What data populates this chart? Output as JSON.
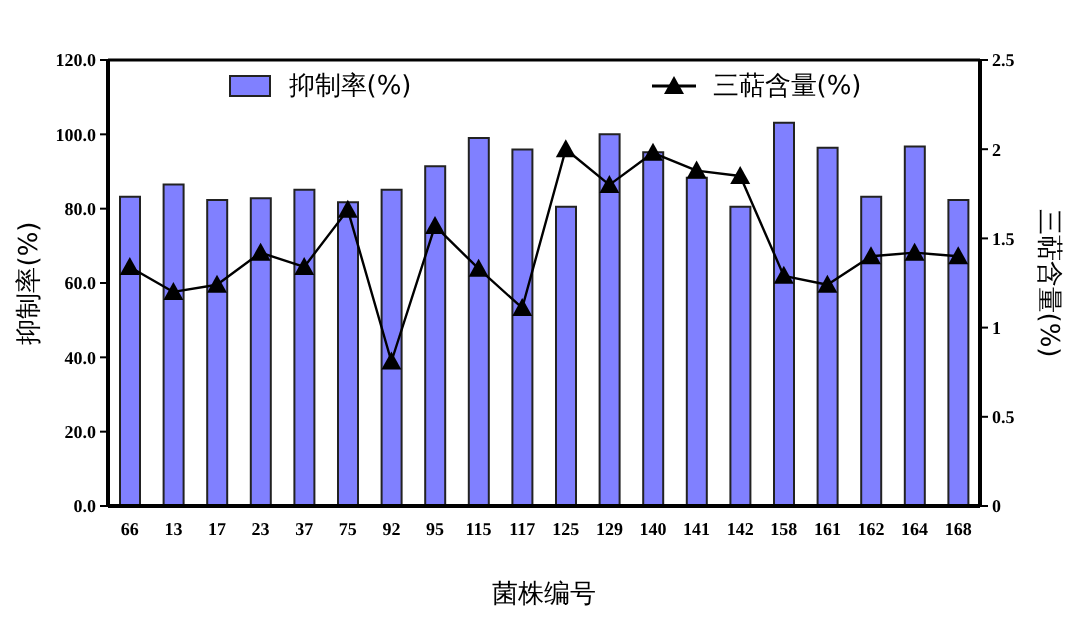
{
  "chart_data": {
    "type": "bar",
    "xlabel": "菌株编号",
    "ylabel": "抑制率(%)",
    "y2label": "三萜含量(%)",
    "categories": [
      "66",
      "13",
      "17",
      "23",
      "37",
      "75",
      "92",
      "95",
      "115",
      "117",
      "125",
      "129",
      "140",
      "141",
      "142",
      "158",
      "161",
      "162",
      "164",
      "168"
    ],
    "series": [
      {
        "name": "抑制率(%)",
        "color": "#8080ff",
        "values": [
          83.2,
          86.5,
          82.3,
          82.8,
          85.1,
          81.7,
          85.1,
          91.4,
          99.0,
          95.9,
          80.5,
          100.0,
          95.2,
          88.3,
          80.5,
          103.1,
          96.4,
          83.2,
          96.7,
          82.3
        ]
      },
      {
        "name": "三萜含量(%)",
        "type": "line",
        "axis": "y2",
        "color": "#000000",
        "marker": "triangle",
        "values": [
          1.34,
          1.2,
          1.24,
          1.42,
          1.34,
          1.66,
          0.81,
          1.57,
          1.33,
          1.11,
          2.0,
          1.8,
          1.98,
          1.88,
          1.85,
          1.29,
          1.24,
          1.4,
          1.42,
          1.4
        ]
      }
    ],
    "ylim": [
      0,
      120
    ],
    "yticks": [
      {
        "value": 0,
        "label": "0.0"
      },
      {
        "value": 20,
        "label": "20.0"
      },
      {
        "value": 40,
        "label": "40.0"
      },
      {
        "value": 60,
        "label": "60.0"
      },
      {
        "value": 80,
        "label": "80.0"
      },
      {
        "value": 100,
        "label": "100.0"
      },
      {
        "value": 120,
        "label": "120.0"
      }
    ],
    "y2lim": [
      0,
      2.5
    ],
    "y2ticks": [
      0,
      0.5,
      1,
      1.5,
      2,
      2.5
    ],
    "grid": false,
    "legend": "top",
    "line_style": "solid"
  }
}
